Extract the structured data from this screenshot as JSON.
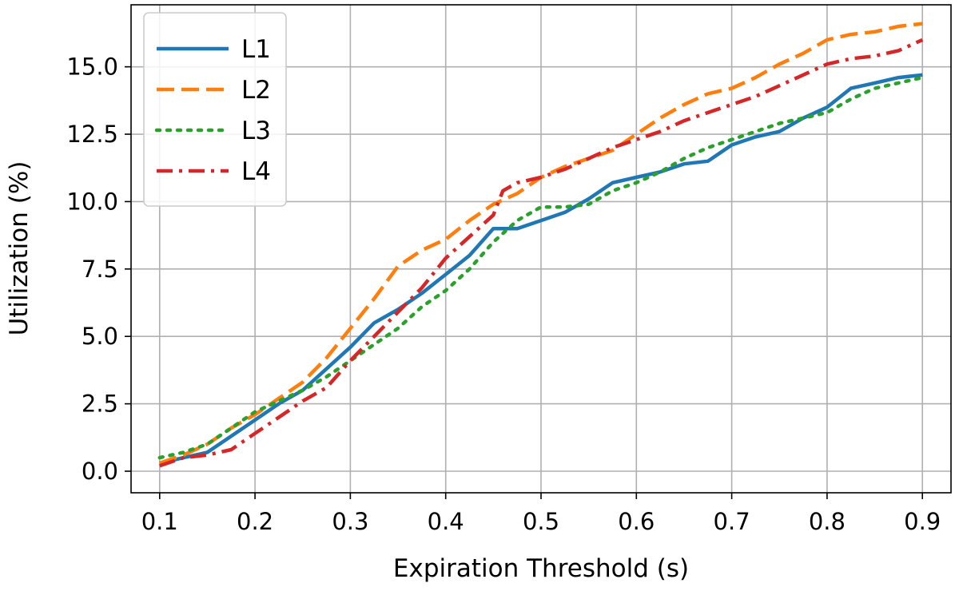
{
  "chart_data": {
    "type": "line",
    "xlabel": "Expiration Threshold (s)",
    "ylabel": "Utilization  (%)",
    "xlim": [
      0.07,
      0.93
    ],
    "ylim": [
      -0.8,
      17.3
    ],
    "xticks": [
      0.1,
      0.2,
      0.3,
      0.4,
      0.5,
      0.6,
      0.7,
      0.8,
      0.9
    ],
    "xtick_labels": [
      "0.1",
      "0.2",
      "0.3",
      "0.4",
      "0.5",
      "0.6",
      "0.7",
      "0.8",
      "0.9"
    ],
    "yticks": [
      0.0,
      2.5,
      5.0,
      7.5,
      10.0,
      12.5,
      15.0
    ],
    "ytick_labels": [
      "0.0",
      "2.5",
      "5.0",
      "7.5",
      "10.0",
      "12.5",
      "15.0"
    ],
    "grid": true,
    "legend_position": "upper-left",
    "series": [
      {
        "name": "L1",
        "color": "#1f77b4",
        "style": "solid",
        "x": [
          0.1,
          0.125,
          0.15,
          0.175,
          0.2,
          0.225,
          0.25,
          0.275,
          0.3,
          0.325,
          0.35,
          0.375,
          0.4,
          0.425,
          0.45,
          0.475,
          0.5,
          0.525,
          0.55,
          0.575,
          0.6,
          0.625,
          0.65,
          0.675,
          0.7,
          0.725,
          0.75,
          0.775,
          0.8,
          0.825,
          0.85,
          0.875,
          0.9
        ],
        "y": [
          0.3,
          0.5,
          0.7,
          1.3,
          1.9,
          2.5,
          3.0,
          3.8,
          4.6,
          5.5,
          6.0,
          6.6,
          7.3,
          8.0,
          9.0,
          9.0,
          9.3,
          9.6,
          10.1,
          10.7,
          10.9,
          11.1,
          11.4,
          11.5,
          12.1,
          12.4,
          12.6,
          13.1,
          13.5,
          14.2,
          14.4,
          14.6,
          14.7
        ]
      },
      {
        "name": "L2",
        "color": "#ff7f0e",
        "style": "dashed",
        "x": [
          0.1,
          0.125,
          0.15,
          0.175,
          0.2,
          0.225,
          0.25,
          0.275,
          0.3,
          0.325,
          0.35,
          0.375,
          0.4,
          0.425,
          0.45,
          0.475,
          0.5,
          0.525,
          0.55,
          0.575,
          0.6,
          0.625,
          0.65,
          0.675,
          0.7,
          0.725,
          0.75,
          0.775,
          0.8,
          0.825,
          0.85,
          0.875,
          0.9
        ],
        "y": [
          0.3,
          0.6,
          1.0,
          1.6,
          2.1,
          2.7,
          3.3,
          4.2,
          5.3,
          6.4,
          7.6,
          8.2,
          8.6,
          9.3,
          9.9,
          10.3,
          10.9,
          11.3,
          11.6,
          11.9,
          12.5,
          13.1,
          13.6,
          14.0,
          14.2,
          14.6,
          15.1,
          15.5,
          16.0,
          16.2,
          16.3,
          16.5,
          16.6
        ]
      },
      {
        "name": "L3",
        "color": "#2ca02c",
        "style": "dotted",
        "x": [
          0.1,
          0.125,
          0.15,
          0.175,
          0.2,
          0.225,
          0.25,
          0.275,
          0.3,
          0.325,
          0.35,
          0.375,
          0.4,
          0.425,
          0.45,
          0.475,
          0.5,
          0.525,
          0.55,
          0.575,
          0.6,
          0.625,
          0.65,
          0.675,
          0.7,
          0.725,
          0.75,
          0.775,
          0.8,
          0.825,
          0.85,
          0.875,
          0.9
        ],
        "y": [
          0.5,
          0.7,
          1.0,
          1.6,
          2.2,
          2.6,
          3.0,
          3.5,
          4.1,
          4.7,
          5.3,
          6.1,
          6.7,
          7.5,
          8.5,
          9.3,
          9.8,
          9.8,
          9.9,
          10.4,
          10.7,
          11.1,
          11.6,
          12.0,
          12.3,
          12.6,
          12.9,
          13.1,
          13.3,
          13.8,
          14.2,
          14.4,
          14.6
        ]
      },
      {
        "name": "L4",
        "color": "#d62728",
        "style": "dashdot",
        "x": [
          0.1,
          0.125,
          0.15,
          0.175,
          0.2,
          0.225,
          0.25,
          0.275,
          0.3,
          0.325,
          0.35,
          0.375,
          0.4,
          0.425,
          0.45,
          0.46,
          0.475,
          0.5,
          0.525,
          0.55,
          0.575,
          0.6,
          0.625,
          0.65,
          0.675,
          0.7,
          0.725,
          0.75,
          0.775,
          0.8,
          0.825,
          0.85,
          0.875,
          0.9
        ],
        "y": [
          0.2,
          0.5,
          0.6,
          0.8,
          1.4,
          2.0,
          2.6,
          3.1,
          4.1,
          5.0,
          5.9,
          6.8,
          7.9,
          8.7,
          9.5,
          10.4,
          10.7,
          10.9,
          11.2,
          11.6,
          12.0,
          12.3,
          12.6,
          13.0,
          13.3,
          13.6,
          13.9,
          14.3,
          14.7,
          15.1,
          15.3,
          15.4,
          15.6,
          16.0
        ]
      }
    ]
  }
}
